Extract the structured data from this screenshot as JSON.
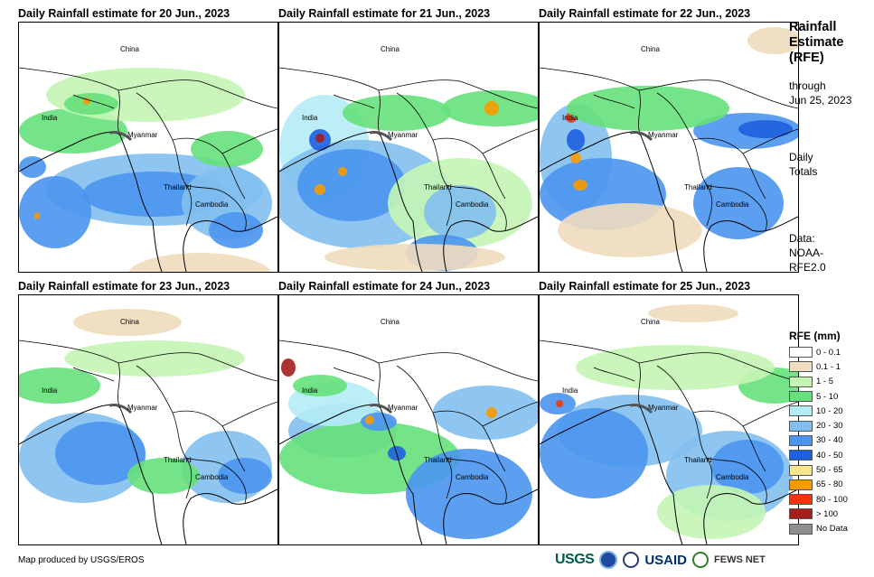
{
  "panels": [
    {
      "title": "Daily Rainfall estimate for 20 Jun., 2023"
    },
    {
      "title": "Daily Rainfall estimate for 21 Jun., 2023"
    },
    {
      "title": "Daily Rainfall estimate for 22 Jun., 2023"
    },
    {
      "title": "Daily Rainfall estimate for 23 Jun., 2023"
    },
    {
      "title": "Daily Rainfall estimate for 24 Jun., 2023"
    },
    {
      "title": "Daily Rainfall estimate for 25 Jun., 2023"
    }
  ],
  "map_labels": {
    "china": "China",
    "india": "India",
    "myanmar": "Myanmar",
    "thailand": "Thailand",
    "cambodia": "Cambodia"
  },
  "side": {
    "title_line1": "Rainfall",
    "title_line2": "Estimate",
    "title_line3": "(RFE)",
    "through_label": "through",
    "through_date": "Jun 25, 2023",
    "totals_line1": "Daily",
    "totals_line2": "Totals",
    "data_line1": "Data:",
    "data_line2": "NOAA-",
    "data_line3": "RFE2.0"
  },
  "legend": {
    "title": "RFE (mm)",
    "items": [
      {
        "label": "0 - 0.1",
        "color": "#ffffff"
      },
      {
        "label": "0.1 - 1",
        "color": "#f0dcbe"
      },
      {
        "label": "1 - 5",
        "color": "#c4f5b5"
      },
      {
        "label": "5 - 10",
        "color": "#66e07a"
      },
      {
        "label": "10 - 20",
        "color": "#b4ecf5"
      },
      {
        "label": "20 - 30",
        "color": "#82bff0"
      },
      {
        "label": "30 - 40",
        "color": "#4a95ef"
      },
      {
        "label": "40 - 50",
        "color": "#1e5fe0"
      },
      {
        "label": "50 - 65",
        "color": "#fae48c"
      },
      {
        "label": "65 - 80",
        "color": "#f79a00"
      },
      {
        "label": "80 - 100",
        "color": "#f0360a"
      },
      {
        "label": "> 100",
        "color": "#a51d1d"
      },
      {
        "label": "No Data",
        "color": "#8f8f8f"
      }
    ]
  },
  "credit": "Map produced by USGS/EROS",
  "logos": {
    "usgs": "USGS",
    "usaid": "USAID",
    "fews": "FEWS NET"
  }
}
